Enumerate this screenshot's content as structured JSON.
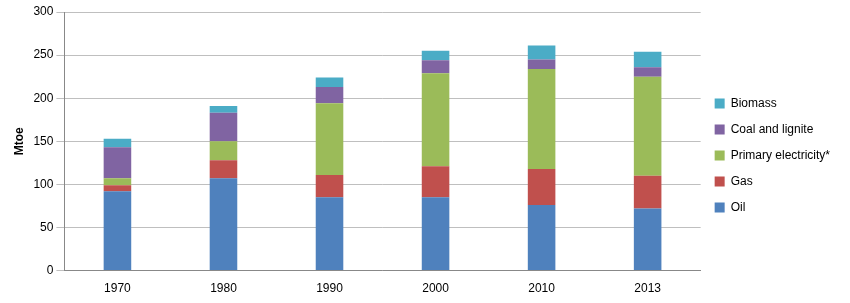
{
  "chart_data": {
    "type": "bar",
    "stacked": true,
    "y_label": "Mtoe",
    "categories": [
      "1970",
      "1980",
      "1990",
      "2000",
      "2010",
      "2013"
    ],
    "series": [
      {
        "name": "Oil",
        "color": "#4f81bd",
        "values": [
          92,
          107,
          85,
          85,
          76,
          72
        ]
      },
      {
        "name": "Gas",
        "color": "#c0504d",
        "values": [
          7,
          21,
          26,
          36,
          42,
          38
        ]
      },
      {
        "name": "Primary electricity*",
        "color": "#9bbb59",
        "values": [
          8,
          22,
          83,
          108,
          116,
          115
        ]
      },
      {
        "name": "Coal and lignite",
        "color": "#8064a2",
        "values": [
          36,
          33,
          19,
          15,
          11,
          11
        ]
      },
      {
        "name": "Biomass",
        "color": "#4bacc6",
        "values": [
          10,
          8,
          11,
          11,
          16,
          18
        ]
      }
    ],
    "ylim": [
      0,
      300
    ],
    "yticks": [
      0,
      50,
      100,
      150,
      200,
      250,
      300
    ],
    "grid": true,
    "legend": "right"
  }
}
